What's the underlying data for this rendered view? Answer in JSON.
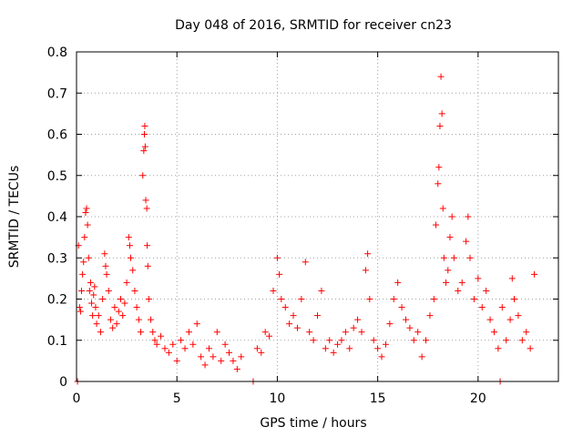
{
  "chart_data": {
    "type": "scatter",
    "title": "Day 048 of 2016, SRMTID for receiver cn23",
    "xlabel": "GPS time / hours",
    "ylabel": "SRMTID / TECUs",
    "xlim": [
      0,
      24
    ],
    "ylim": [
      0,
      0.8
    ],
    "xticks": [
      0,
      5,
      10,
      15,
      20
    ],
    "yticks": [
      0,
      0.1,
      0.2,
      0.3,
      0.4,
      0.5,
      0.6,
      0.7,
      0.8
    ],
    "xtick_labels": [
      "0",
      "5",
      "10",
      "15",
      "20"
    ],
    "ytick_labels": [
      "0",
      "0.1",
      "0.2",
      "0.3",
      "0.4",
      "0.5",
      "0.6",
      "0.7",
      "0.8"
    ],
    "grid": true,
    "marker": "+",
    "series_color": "#ff0000",
    "series": [
      {
        "name": "SRMTID",
        "points": [
          [
            0.05,
            0.0
          ],
          [
            0.1,
            0.33
          ],
          [
            0.15,
            0.18
          ],
          [
            0.2,
            0.17
          ],
          [
            0.25,
            0.22
          ],
          [
            0.3,
            0.26
          ],
          [
            0.35,
            0.29
          ],
          [
            0.4,
            0.35
          ],
          [
            0.45,
            0.41
          ],
          [
            0.5,
            0.42
          ],
          [
            0.55,
            0.38
          ],
          [
            0.6,
            0.3
          ],
          [
            0.65,
            0.22
          ],
          [
            0.7,
            0.24
          ],
          [
            0.75,
            0.19
          ],
          [
            0.8,
            0.16
          ],
          [
            0.85,
            0.21
          ],
          [
            0.9,
            0.23
          ],
          [
            0.95,
            0.18
          ],
          [
            1.0,
            0.14
          ],
          [
            1.1,
            0.16
          ],
          [
            1.2,
            0.12
          ],
          [
            1.3,
            0.2
          ],
          [
            1.4,
            0.31
          ],
          [
            1.45,
            0.28
          ],
          [
            1.5,
            0.26
          ],
          [
            1.6,
            0.22
          ],
          [
            1.7,
            0.15
          ],
          [
            1.8,
            0.13
          ],
          [
            1.9,
            0.18
          ],
          [
            2.0,
            0.14
          ],
          [
            2.1,
            0.17
          ],
          [
            2.2,
            0.2
          ],
          [
            2.3,
            0.16
          ],
          [
            2.4,
            0.19
          ],
          [
            2.5,
            0.24
          ],
          [
            2.6,
            0.35
          ],
          [
            2.65,
            0.33
          ],
          [
            2.7,
            0.3
          ],
          [
            2.8,
            0.27
          ],
          [
            2.9,
            0.22
          ],
          [
            3.0,
            0.18
          ],
          [
            3.1,
            0.15
          ],
          [
            3.2,
            0.12
          ],
          [
            3.3,
            0.5
          ],
          [
            3.35,
            0.56
          ],
          [
            3.38,
            0.6
          ],
          [
            3.4,
            0.62
          ],
          [
            3.42,
            0.57
          ],
          [
            3.45,
            0.44
          ],
          [
            3.5,
            0.42
          ],
          [
            3.52,
            0.33
          ],
          [
            3.55,
            0.28
          ],
          [
            3.6,
            0.2
          ],
          [
            3.7,
            0.15
          ],
          [
            3.8,
            0.12
          ],
          [
            3.9,
            0.1
          ],
          [
            4.0,
            0.09
          ],
          [
            4.2,
            0.11
          ],
          [
            4.4,
            0.08
          ],
          [
            4.6,
            0.07
          ],
          [
            4.8,
            0.09
          ],
          [
            5.0,
            0.05
          ],
          [
            5.2,
            0.1
          ],
          [
            5.4,
            0.08
          ],
          [
            5.6,
            0.12
          ],
          [
            5.8,
            0.09
          ],
          [
            6.0,
            0.14
          ],
          [
            6.2,
            0.06
          ],
          [
            6.4,
            0.04
          ],
          [
            6.6,
            0.08
          ],
          [
            6.8,
            0.06
          ],
          [
            7.0,
            0.12
          ],
          [
            7.2,
            0.05
          ],
          [
            7.4,
            0.09
          ],
          [
            7.6,
            0.07
          ],
          [
            7.8,
            0.05
          ],
          [
            8.0,
            0.03
          ],
          [
            8.2,
            0.06
          ],
          [
            8.8,
            0.0
          ],
          [
            9.0,
            0.08
          ],
          [
            9.2,
            0.07
          ],
          [
            9.4,
            0.12
          ],
          [
            9.6,
            0.11
          ],
          [
            9.8,
            0.22
          ],
          [
            10.0,
            0.3
          ],
          [
            10.1,
            0.26
          ],
          [
            10.2,
            0.2
          ],
          [
            10.4,
            0.18
          ],
          [
            10.6,
            0.14
          ],
          [
            10.8,
            0.16
          ],
          [
            11.0,
            0.13
          ],
          [
            11.2,
            0.2
          ],
          [
            11.4,
            0.29
          ],
          [
            11.6,
            0.12
          ],
          [
            11.8,
            0.1
          ],
          [
            12.0,
            0.16
          ],
          [
            12.2,
            0.22
          ],
          [
            12.4,
            0.08
          ],
          [
            12.6,
            0.1
          ],
          [
            12.8,
            0.07
          ],
          [
            13.0,
            0.09
          ],
          [
            13.2,
            0.1
          ],
          [
            13.4,
            0.12
          ],
          [
            13.6,
            0.08
          ],
          [
            13.8,
            0.13
          ],
          [
            14.0,
            0.15
          ],
          [
            14.2,
            0.12
          ],
          [
            14.4,
            0.27
          ],
          [
            14.5,
            0.31
          ],
          [
            14.6,
            0.2
          ],
          [
            14.8,
            0.1
          ],
          [
            15.0,
            0.08
          ],
          [
            15.2,
            0.06
          ],
          [
            15.4,
            0.09
          ],
          [
            15.6,
            0.14
          ],
          [
            15.8,
            0.2
          ],
          [
            16.0,
            0.24
          ],
          [
            16.2,
            0.18
          ],
          [
            16.4,
            0.15
          ],
          [
            16.6,
            0.13
          ],
          [
            16.8,
            0.1
          ],
          [
            17.0,
            0.12
          ],
          [
            17.2,
            0.06
          ],
          [
            17.4,
            0.1
          ],
          [
            17.6,
            0.16
          ],
          [
            17.8,
            0.2
          ],
          [
            17.9,
            0.38
          ],
          [
            18.0,
            0.48
          ],
          [
            18.05,
            0.52
          ],
          [
            18.1,
            0.62
          ],
          [
            18.15,
            0.74
          ],
          [
            18.2,
            0.65
          ],
          [
            18.25,
            0.42
          ],
          [
            18.3,
            0.3
          ],
          [
            18.4,
            0.24
          ],
          [
            18.5,
            0.27
          ],
          [
            18.6,
            0.35
          ],
          [
            18.7,
            0.4
          ],
          [
            18.8,
            0.3
          ],
          [
            19.0,
            0.22
          ],
          [
            19.2,
            0.24
          ],
          [
            19.4,
            0.34
          ],
          [
            19.5,
            0.4
          ],
          [
            19.6,
            0.3
          ],
          [
            19.8,
            0.2
          ],
          [
            20.0,
            0.25
          ],
          [
            20.2,
            0.18
          ],
          [
            20.4,
            0.22
          ],
          [
            20.6,
            0.15
          ],
          [
            20.8,
            0.12
          ],
          [
            21.0,
            0.08
          ],
          [
            21.1,
            0.0
          ],
          [
            21.2,
            0.18
          ],
          [
            21.4,
            0.1
          ],
          [
            21.6,
            0.15
          ],
          [
            21.7,
            0.25
          ],
          [
            21.8,
            0.2
          ],
          [
            22.0,
            0.16
          ],
          [
            22.2,
            0.1
          ],
          [
            22.4,
            0.12
          ],
          [
            22.6,
            0.08
          ],
          [
            22.8,
            0.26
          ]
        ]
      }
    ]
  }
}
